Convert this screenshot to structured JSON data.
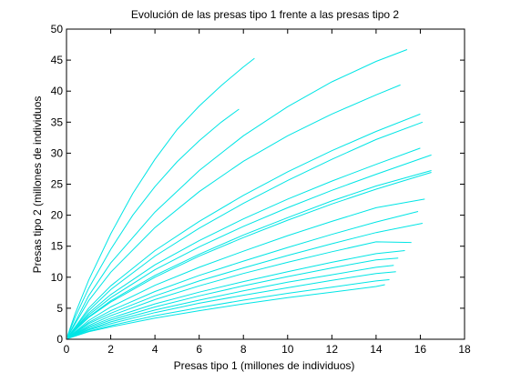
{
  "chart_data": {
    "type": "line",
    "title": "Evolución de las presas tipo 1 frente a las presas tipo 2",
    "xlabel": "Presas tipo 1 (millones de individuos)",
    "ylabel": "Presas tipo 2 (millones de individuos",
    "xlim": [
      0,
      18
    ],
    "ylim": [
      0,
      50
    ],
    "xticks": [
      "0",
      "2",
      "4",
      "6",
      "8",
      "10",
      "12",
      "14",
      "16",
      "18"
    ],
    "yticks": [
      "0",
      "5",
      "10",
      "15",
      "20",
      "25",
      "30",
      "35",
      "40",
      "45",
      "50"
    ],
    "grid": false,
    "line_color": "#00e5e5",
    "series": [
      {
        "x": [
          0.05,
          0.4,
          1.0,
          2.0,
          3.0,
          4.0,
          5.0,
          6.0,
          7.0,
          8.0,
          8.5
        ],
        "y": [
          0.6,
          4.2,
          9.5,
          17.0,
          23.5,
          29.0,
          33.8,
          37.6,
          40.9,
          43.9,
          45.3
        ]
      },
      {
        "x": [
          0.05,
          0.4,
          1.0,
          2.0,
          3.0,
          4.0,
          5.0,
          6.0,
          7.0,
          7.8
        ],
        "y": [
          0.5,
          3.6,
          8.2,
          14.5,
          20.0,
          24.6,
          28.6,
          32.0,
          35.0,
          37.1
        ]
      },
      {
        "x": [
          0.05,
          1.0,
          2.0,
          4.0,
          6.0,
          8.0,
          10.0,
          12.0,
          14.0,
          15.4
        ],
        "y": [
          0.4,
          7.0,
          12.3,
          20.5,
          27.2,
          32.8,
          37.5,
          41.5,
          44.8,
          46.7
        ]
      },
      {
        "x": [
          0.05,
          1.0,
          2.0,
          4.0,
          6.0,
          8.0,
          10.0,
          12.0,
          14.0,
          15.1
        ],
        "y": [
          0.4,
          6.2,
          10.8,
          18.0,
          23.8,
          28.7,
          32.8,
          36.3,
          39.4,
          41.0
        ]
      },
      {
        "x": [
          0.05,
          1.0,
          2.0,
          4.0,
          6.0,
          8.0,
          10.0,
          12.0,
          14.0,
          16.0
        ],
        "y": [
          0.3,
          5.0,
          8.6,
          14.3,
          19.0,
          23.2,
          27.0,
          30.4,
          33.5,
          36.3
        ]
      },
      {
        "x": [
          0.05,
          1.0,
          2.0,
          4.0,
          6.0,
          8.0,
          10.0,
          12.0,
          14.0,
          16.1
        ],
        "y": [
          0.3,
          4.6,
          8.0,
          13.4,
          17.9,
          21.9,
          25.6,
          29.0,
          32.2,
          35.0
        ]
      },
      {
        "x": [
          0.05,
          1.0,
          2.0,
          4.0,
          6.0,
          8.0,
          10.0,
          12.0,
          14.0,
          16.0
        ],
        "y": [
          0.3,
          4.2,
          7.2,
          12.0,
          15.9,
          19.4,
          22.6,
          25.5,
          28.2,
          30.8
        ]
      },
      {
        "x": [
          0.05,
          1.0,
          2.0,
          4.0,
          6.0,
          8.0,
          10.0,
          12.0,
          14.0,
          16.5
        ],
        "y": [
          0.3,
          3.9,
          6.7,
          11.2,
          14.9,
          18.2,
          21.2,
          24.0,
          26.6,
          29.7
        ]
      },
      {
        "x": [
          0.05,
          1.0,
          2.0,
          4.0,
          6.0,
          8.0,
          10.0,
          12.0,
          14.0,
          16.5
        ],
        "y": [
          0.3,
          3.6,
          6.2,
          10.3,
          13.7,
          16.8,
          19.6,
          22.3,
          24.7,
          27.2
        ]
      },
      {
        "x": [
          0.05,
          1.0,
          2.0,
          4.0,
          6.0,
          8.0,
          10.0,
          12.0,
          14.0,
          16.5
        ],
        "y": [
          0.3,
          3.5,
          6.0,
          10.0,
          13.4,
          16.4,
          19.2,
          21.8,
          24.2,
          26.9
        ]
      },
      {
        "x": [
          0.05,
          1.0,
          2.0,
          4.0,
          6.0,
          8.0,
          10.0,
          12.0,
          14.0,
          16.2
        ],
        "y": [
          0.2,
          3.0,
          5.2,
          8.7,
          11.6,
          14.2,
          16.7,
          19.0,
          21.2,
          22.6
        ]
      },
      {
        "x": [
          0.05,
          1.0,
          2.0,
          4.0,
          6.0,
          8.0,
          10.0,
          12.0,
          14.0,
          15.9
        ],
        "y": [
          0.2,
          2.7,
          4.6,
          7.7,
          10.3,
          12.6,
          14.8,
          16.9,
          18.9,
          20.6
        ]
      },
      {
        "x": [
          0.05,
          1.0,
          2.0,
          4.0,
          6.0,
          8.0,
          10.0,
          12.0,
          14.0,
          16.1
        ],
        "y": [
          0.2,
          2.5,
          4.2,
          7.0,
          9.4,
          11.5,
          13.5,
          15.4,
          17.2,
          18.7
        ]
      },
      {
        "x": [
          0.05,
          1.0,
          2.0,
          4.0,
          6.0,
          8.0,
          10.0,
          12.0,
          14.0,
          15.6
        ],
        "y": [
          0.2,
          2.2,
          3.8,
          6.4,
          8.6,
          10.6,
          12.4,
          14.1,
          15.7,
          15.6
        ]
      },
      {
        "x": [
          0.05,
          1.0,
          2.0,
          4.0,
          6.0,
          8.0,
          10.0,
          12.0,
          14.0,
          15.3
        ],
        "y": [
          0.2,
          2.0,
          3.4,
          5.7,
          7.6,
          9.3,
          10.9,
          12.4,
          13.8,
          14.3
        ]
      },
      {
        "x": [
          0.05,
          1.0,
          2.0,
          4.0,
          6.0,
          8.0,
          10.0,
          12.0,
          14.0,
          15.0
        ],
        "y": [
          0.2,
          1.8,
          3.1,
          5.2,
          7.0,
          8.6,
          10.1,
          11.5,
          12.8,
          13.1
        ]
      },
      {
        "x": [
          0.05,
          1.0,
          2.0,
          4.0,
          6.0,
          8.0,
          10.0,
          12.0,
          14.0,
          14.8
        ],
        "y": [
          0.2,
          1.6,
          2.8,
          4.7,
          6.3,
          7.8,
          9.2,
          10.4,
          11.6,
          11.9
        ]
      },
      {
        "x": [
          0.05,
          1.0,
          2.0,
          4.0,
          6.0,
          8.0,
          10.0,
          12.0,
          14.0,
          14.9
        ],
        "y": [
          0.1,
          1.5,
          2.5,
          4.3,
          5.8,
          7.1,
          8.3,
          9.5,
          10.6,
          10.9
        ]
      },
      {
        "x": [
          0.05,
          1.0,
          2.0,
          4.0,
          6.0,
          8.0,
          10.0,
          12.0,
          14.0,
          14.6
        ],
        "y": [
          0.1,
          1.3,
          2.2,
          3.8,
          5.1,
          6.3,
          7.4,
          8.4,
          9.4,
          9.6
        ]
      },
      {
        "x": [
          0.05,
          1.0,
          2.0,
          4.0,
          6.0,
          8.0,
          10.0,
          12.0,
          14.0,
          14.4
        ],
        "y": [
          0.1,
          1.2,
          2.0,
          3.4,
          4.6,
          5.7,
          6.7,
          7.6,
          8.5,
          8.8
        ]
      }
    ]
  }
}
